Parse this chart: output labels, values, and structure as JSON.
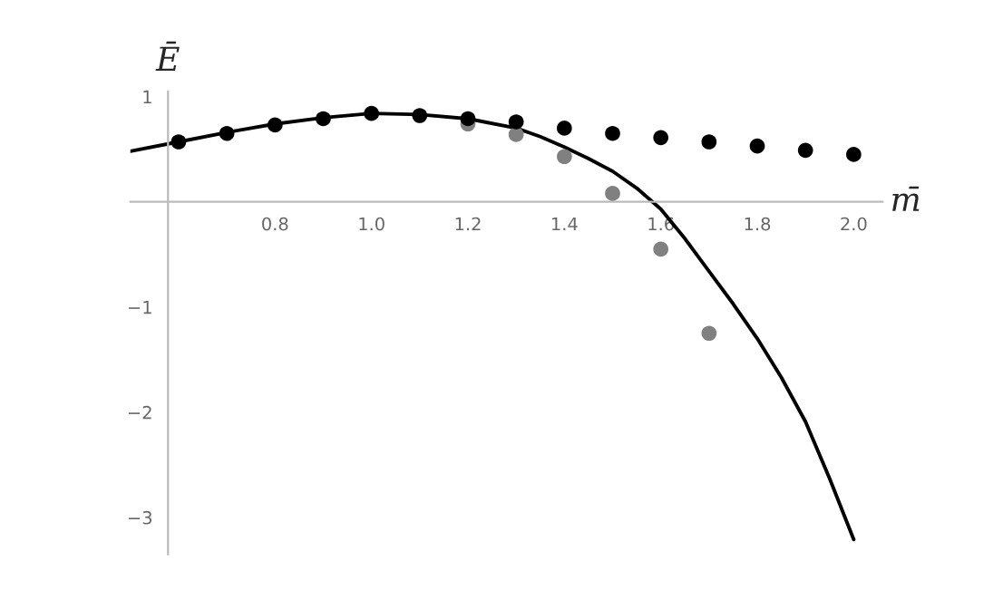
{
  "chart_data": {
    "type": "scatter",
    "xlabel": "m̄",
    "ylabel": "Ē",
    "xlim": [
      0.5,
      2.06
    ],
    "ylim": [
      -3.35,
      1.05
    ],
    "xticks": [
      0.8,
      {
        "value": 1.0,
        "label": "1.0"
      },
      1.2,
      1.4,
      1.6,
      1.8,
      {
        "value": 2.0,
        "label": "2.0"
      }
    ],
    "yticks": [
      {
        "value": -3,
        "label": "−3"
      },
      {
        "value": -2,
        "label": "−2"
      },
      {
        "value": -1,
        "label": "−1"
      },
      1
    ],
    "grid": false,
    "marker": "circle",
    "series": [
      {
        "type": "line",
        "marker": "none",
        "color": "#000000",
        "x": [
          0.5,
          0.6,
          0.7,
          0.8,
          0.9,
          1.0,
          1.1,
          1.2,
          1.3,
          1.35,
          1.4,
          1.45,
          1.5,
          1.55,
          1.6,
          1.65,
          1.7,
          1.75,
          1.8,
          1.85,
          1.9,
          1.95,
          2.0
        ],
        "values": [
          0.48,
          0.57,
          0.66,
          0.74,
          0.8,
          0.84,
          0.83,
          0.79,
          0.7,
          0.62,
          0.52,
          0.41,
          0.29,
          0.13,
          -0.07,
          -0.35,
          -0.66,
          -0.97,
          -1.3,
          -1.67,
          -2.09,
          -2.63,
          -3.21
        ]
      },
      {
        "color": "#808080",
        "x": [
          1.2,
          1.3,
          1.4,
          1.5,
          1.6,
          1.7
        ],
        "values": [
          0.74,
          0.64,
          0.43,
          0.08,
          -0.45,
          -1.25
        ]
      },
      {
        "color": "#000000",
        "x": [
          0.6,
          0.7,
          0.8,
          0.9,
          1.0,
          1.1,
          1.2,
          1.3,
          1.4,
          1.5,
          1.6,
          1.7,
          1.8,
          1.9,
          2.0
        ],
        "values": [
          0.57,
          0.65,
          0.73,
          0.79,
          0.84,
          0.82,
          0.79,
          0.76,
          0.7,
          0.65,
          0.61,
          0.57,
          0.53,
          0.49,
          0.45
        ]
      }
    ]
  }
}
